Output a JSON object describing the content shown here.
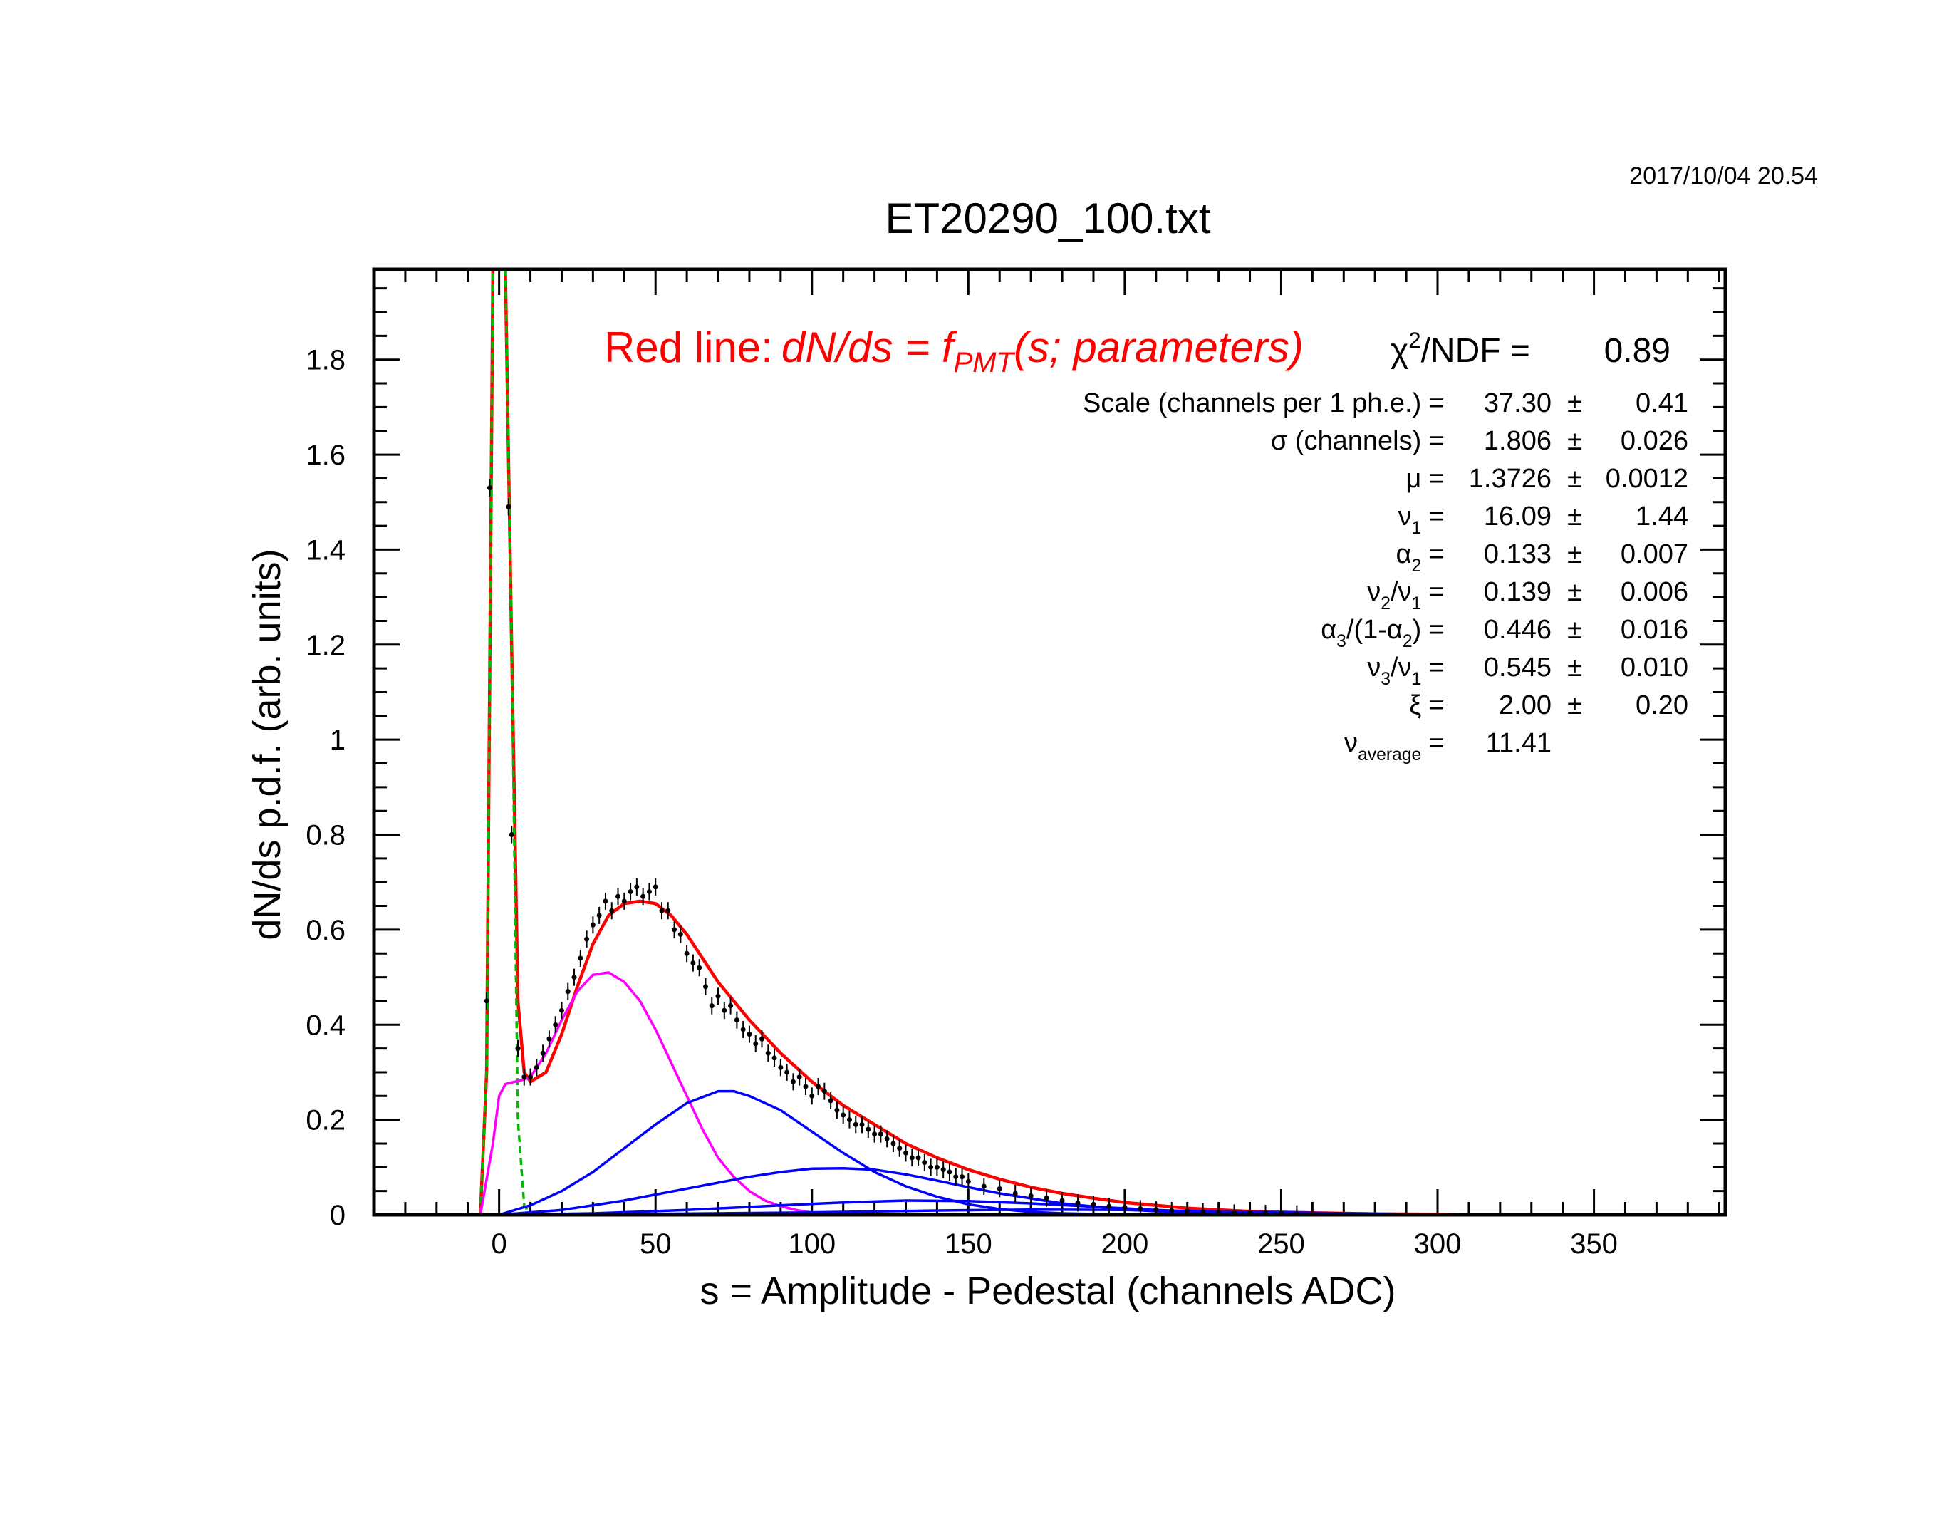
{
  "timestamp": "2017/10/04   20.54",
  "colors": {
    "fit": "#ff0000",
    "single_pe": "#ff00ff",
    "multi_pe": "#0000ff",
    "pedestal": "#00bb00",
    "data": "#000000"
  },
  "legend": {
    "prefix": "Red line:",
    "formula_main": "dN/ds = f",
    "formula_sub": "PMT",
    "formula_args": "(s; parameters)"
  },
  "fit_stats": [
    {
      "label": "χ",
      "sup": "2",
      "rest": "/NDF  =",
      "value": "0.89",
      "error": ""
    },
    {
      "label": "Scale (channels per 1 ph.e.) =",
      "value": "37.30",
      "error": "0.41"
    },
    {
      "label": "σ (channels) =",
      "value": "1.806",
      "error": "0.026"
    },
    {
      "label": "μ  =",
      "value": "1.3726",
      "error": "0.0012"
    },
    {
      "label": "ν",
      "sub": "1",
      "rest": " =",
      "value": "16.09",
      "error": "1.44"
    },
    {
      "label": "α",
      "sub": "2",
      "rest": " =",
      "value": "0.133",
      "error": "0.007"
    },
    {
      "label": "ν",
      "sub": "2",
      "rest": "/ν",
      "sub2": "1",
      "rest2": " =",
      "value": "0.139",
      "error": "0.006"
    },
    {
      "label": "α",
      "sub": "3",
      "rest": "/(1-α",
      "sub2": "2",
      "rest2": ") =",
      "value": "0.446",
      "error": "0.016"
    },
    {
      "label": "ν",
      "sub": "3",
      "rest": "/ν",
      "sub2": "1",
      "rest2": " =",
      "value": "0.545",
      "error": "0.010"
    },
    {
      "label": "ξ  =",
      "value": "2.00",
      "error": "0.20"
    },
    {
      "label": "ν",
      "sub": "average",
      "rest": "  =",
      "value": "11.41",
      "error": ""
    }
  ],
  "chart_data": {
    "type": "line",
    "title": "ET20290_100.txt",
    "xlabel": "s = Amplitude - Pedestal (channels ADC)",
    "ylabel": "dN/ds p.d.f. (arb. units)",
    "xlim": [
      -40,
      392
    ],
    "ylim": [
      0,
      1.99
    ],
    "x_ticks": [
      0,
      50,
      100,
      150,
      200,
      250,
      300,
      350
    ],
    "x_tick_labels": [
      "0",
      "50",
      "100",
      "150",
      "200",
      "250",
      "300",
      "350"
    ],
    "y_ticks": [
      0,
      0.2,
      0.4,
      0.6,
      0.8,
      1,
      1.2,
      1.4,
      1.6,
      1.8
    ],
    "y_tick_labels": [
      "0",
      "0.2",
      "0.4",
      "0.6",
      "0.8",
      "1",
      "1.2",
      "1.4",
      "1.6",
      "1.8"
    ],
    "series": [
      {
        "name": "Red line: dN/ds = fPMT(s; parameters)",
        "color": "#ff0000",
        "x": [
          -6,
          -4,
          -2,
          0,
          2,
          4,
          6,
          8,
          10,
          15,
          20,
          25,
          30,
          35,
          40,
          45,
          50,
          55,
          60,
          65,
          70,
          75,
          80,
          90,
          100,
          110,
          120,
          130,
          140,
          150,
          160,
          170,
          180,
          190,
          200,
          220,
          240,
          260,
          280,
          300,
          310
        ],
        "y": [
          0.0,
          0.3,
          1.99,
          1.99,
          1.99,
          1.2,
          0.45,
          0.3,
          0.28,
          0.3,
          0.38,
          0.48,
          0.57,
          0.63,
          0.655,
          0.66,
          0.655,
          0.63,
          0.59,
          0.54,
          0.49,
          0.45,
          0.41,
          0.34,
          0.28,
          0.23,
          0.19,
          0.15,
          0.12,
          0.095,
          0.075,
          0.058,
          0.045,
          0.035,
          0.026,
          0.014,
          0.007,
          0.004,
          0.002,
          0.001,
          0.0
        ]
      },
      {
        "color": "#00bb00",
        "dashed": true,
        "x": [
          -6,
          -4,
          -2,
          0,
          2,
          4,
          6,
          8,
          10
        ],
        "y": [
          0.0,
          0.3,
          1.99,
          1.99,
          1.99,
          1.2,
          0.2,
          0.02,
          0.0
        ]
      },
      {
        "color": "#ff00ff",
        "x": [
          -6,
          -2,
          0,
          2,
          5,
          8,
          10,
          15,
          20,
          25,
          30,
          35,
          40,
          45,
          50,
          55,
          60,
          65,
          70,
          75,
          80,
          85,
          90,
          95,
          100,
          110,
          120
        ],
        "y": [
          0.0,
          0.15,
          0.25,
          0.275,
          0.28,
          0.285,
          0.29,
          0.34,
          0.41,
          0.47,
          0.505,
          0.51,
          0.49,
          0.45,
          0.39,
          0.32,
          0.25,
          0.18,
          0.12,
          0.08,
          0.05,
          0.03,
          0.018,
          0.01,
          0.005,
          0.001,
          0.0
        ]
      },
      {
        "color": "#0000ff",
        "x": [
          0,
          10,
          20,
          30,
          40,
          50,
          60,
          70,
          75,
          80,
          90,
          100,
          110,
          120,
          130,
          140,
          150,
          160,
          170,
          180,
          200
        ],
        "y": [
          0.0,
          0.02,
          0.05,
          0.09,
          0.14,
          0.19,
          0.235,
          0.26,
          0.26,
          0.25,
          0.22,
          0.175,
          0.13,
          0.09,
          0.06,
          0.038,
          0.022,
          0.012,
          0.006,
          0.003,
          0.0
        ]
      },
      {
        "color": "#0000ff",
        "x": [
          0,
          20,
          40,
          60,
          80,
          90,
          100,
          110,
          120,
          130,
          140,
          150,
          160,
          180,
          200,
          220,
          240
        ],
        "y": [
          0.0,
          0.01,
          0.03,
          0.055,
          0.08,
          0.09,
          0.097,
          0.098,
          0.095,
          0.085,
          0.072,
          0.058,
          0.045,
          0.024,
          0.011,
          0.004,
          0.0
        ]
      },
      {
        "color": "#0000ff",
        "x": [
          0,
          30,
          60,
          90,
          110,
          130,
          150,
          170,
          190,
          210,
          230,
          250,
          270
        ],
        "y": [
          0.0,
          0.003,
          0.01,
          0.02,
          0.026,
          0.03,
          0.029,
          0.024,
          0.017,
          0.01,
          0.005,
          0.002,
          0.0
        ]
      },
      {
        "color": "#0000ff",
        "x": [
          0,
          50,
          100,
          140,
          170,
          200,
          230,
          260,
          300
        ],
        "y": [
          0.0,
          0.002,
          0.005,
          0.009,
          0.011,
          0.01,
          0.007,
          0.004,
          0.0
        ]
      },
      {
        "color": "#000000",
        "type": "points",
        "x": [
          -4,
          -3,
          3,
          4,
          6,
          8,
          10,
          12,
          14,
          16,
          18,
          20,
          22,
          24,
          26,
          28,
          30,
          32,
          34,
          36,
          38,
          40,
          42,
          44,
          46,
          48,
          50,
          52,
          54,
          56,
          58,
          60,
          62,
          64,
          66,
          68,
          70,
          72,
          74,
          76,
          78,
          80,
          82,
          84,
          86,
          88,
          90,
          92,
          94,
          96,
          98,
          100,
          102,
          104,
          106,
          108,
          110,
          112,
          114,
          116,
          118,
          120,
          122,
          124,
          126,
          128,
          130,
          132,
          134,
          136,
          138,
          140,
          142,
          144,
          146,
          148,
          150,
          155,
          160,
          165,
          170,
          175,
          180,
          185,
          190,
          195,
          200,
          205,
          210,
          215,
          220,
          225,
          230,
          235,
          240,
          245,
          250,
          255,
          260
        ],
        "y": [
          0.45,
          1.53,
          1.49,
          0.8,
          0.35,
          0.29,
          0.29,
          0.31,
          0.34,
          0.37,
          0.4,
          0.43,
          0.47,
          0.5,
          0.54,
          0.58,
          0.61,
          0.63,
          0.66,
          0.64,
          0.67,
          0.66,
          0.68,
          0.69,
          0.67,
          0.68,
          0.69,
          0.64,
          0.64,
          0.6,
          0.59,
          0.55,
          0.53,
          0.52,
          0.48,
          0.44,
          0.46,
          0.43,
          0.44,
          0.41,
          0.39,
          0.38,
          0.36,
          0.37,
          0.34,
          0.33,
          0.31,
          0.3,
          0.28,
          0.29,
          0.27,
          0.25,
          0.27,
          0.26,
          0.24,
          0.22,
          0.21,
          0.2,
          0.19,
          0.19,
          0.18,
          0.17,
          0.17,
          0.16,
          0.15,
          0.14,
          0.13,
          0.12,
          0.12,
          0.11,
          0.1,
          0.1,
          0.095,
          0.09,
          0.08,
          0.08,
          0.07,
          0.06,
          0.055,
          0.045,
          0.04,
          0.035,
          0.03,
          0.025,
          0.022,
          0.018,
          0.016,
          0.013,
          0.011,
          0.009,
          0.008,
          0.006,
          0.005,
          0.004,
          0.004,
          0.003,
          0.003,
          0.002,
          0.002
        ]
      }
    ]
  }
}
